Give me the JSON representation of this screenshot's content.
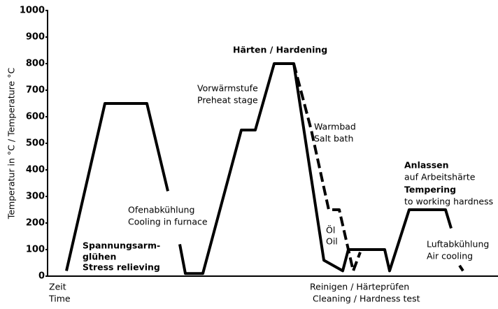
{
  "chart_data": {
    "type": "line",
    "ylabel": "Temperatur in °C / Temperature °C",
    "ylim": [
      0,
      1000
    ],
    "yticks": [
      0,
      100,
      200,
      300,
      400,
      500,
      600,
      700,
      800,
      900,
      1000
    ],
    "xlim": [
      0,
      644
    ],
    "series": [
      {
        "color": "#000000",
        "dashed": false,
        "x": [
          27,
          82,
          142,
          172
        ],
        "values": [
          20,
          650,
          650,
          320
        ]
      },
      {
        "color": "#000000",
        "dashed": false,
        "x": [
          189,
          197,
          222,
          277,
          297,
          324,
          352,
          395,
          422,
          430,
          482,
          489,
          517,
          569,
          577
        ],
        "values": [
          120,
          10,
          10,
          550,
          550,
          800,
          800,
          60,
          20,
          100,
          100,
          20,
          250,
          250,
          180
        ]
      },
      {
        "color": "#000000",
        "dashed": true,
        "x": [
          352,
          377,
          402,
          417,
          437,
          447
        ],
        "values": [
          800,
          550,
          250,
          250,
          20,
          90
        ]
      },
      {
        "color": "#000000",
        "dashed": true,
        "x": [
          589,
          594
        ],
        "values": [
          40,
          20
        ]
      }
    ],
    "annotations": [
      "Härten / Hardening",
      "Vorwärmstufe",
      "Preheat stage",
      "Warmbad",
      "Salt bath",
      "Ofenabkühlung",
      "Cooling in furnace",
      "Spannungsarm-",
      "glühen",
      "Stress relieving",
      "Öl",
      "Oil",
      "Anlassen",
      "auf Arbeitshärte",
      "Tempering",
      "to working hardness",
      "Luftabkühlung",
      "Air cooling",
      "Zeit",
      "Time",
      "Reinigen / Härteprüfen",
      "Cleaning / Hardness test"
    ]
  }
}
